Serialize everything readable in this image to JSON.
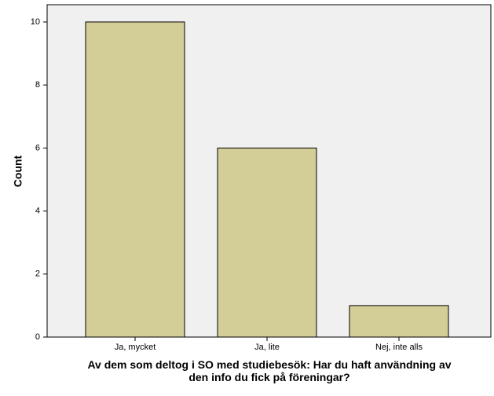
{
  "chart_data": {
    "type": "bar",
    "x_label": "Av dem som deltog i SO med studiebesök: Har du haft användning av den info du fick på föreningar?",
    "y_label": "Count",
    "categories": [
      "Ja, mycket",
      "Ja, lite",
      "Nej, inte alls"
    ],
    "values": [
      10,
      6,
      1
    ],
    "color": "#d3ce97",
    "ylim": [
      0,
      10.5
    ],
    "yticks": [
      0,
      2,
      4,
      6,
      8,
      10
    ]
  }
}
